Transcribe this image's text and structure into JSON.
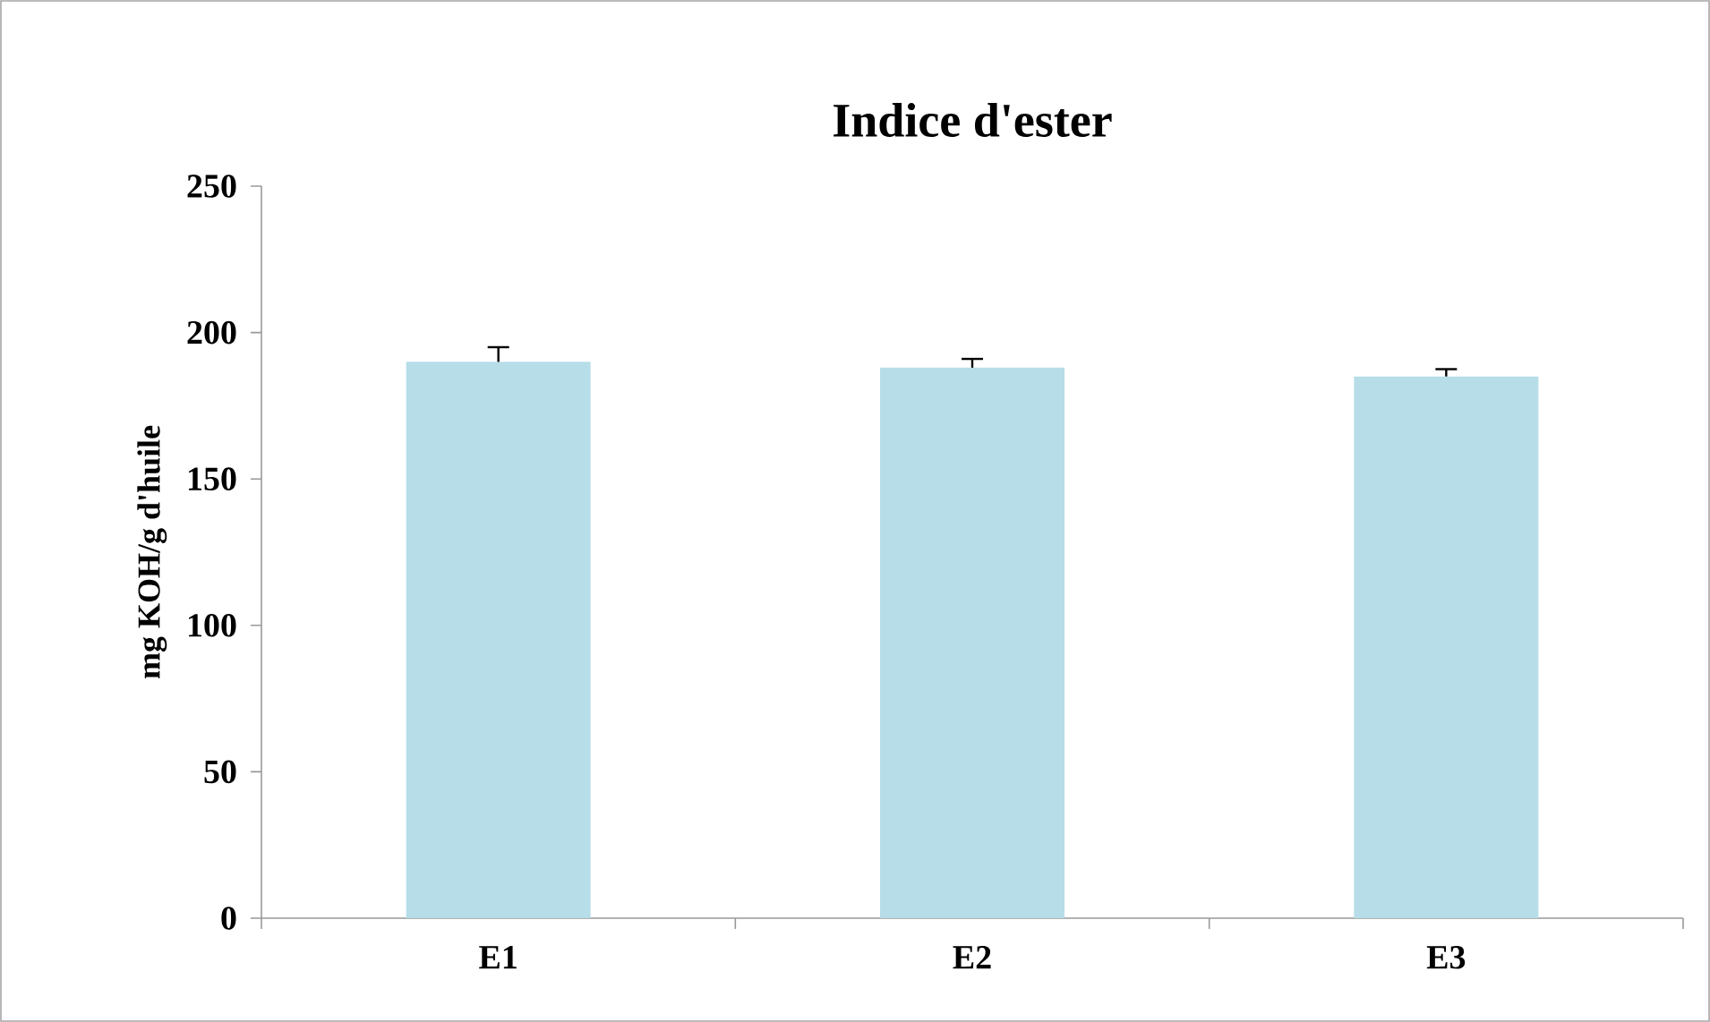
{
  "chart_data": {
    "type": "bar",
    "title": "Indice d'ester",
    "ylabel": "mg KOH/g d'huile",
    "categories": [
      "E1",
      "E2",
      "E3"
    ],
    "values": [
      190,
      188,
      185
    ],
    "errors": [
      [
        190,
        195
      ],
      [
        188,
        191
      ],
      [
        185,
        187.5
      ]
    ],
    "color": "#b7dde8",
    "ylim": [
      0,
      250
    ],
    "yticks": [
      0,
      50,
      100,
      150,
      200,
      250
    ],
    "grid": false
  }
}
